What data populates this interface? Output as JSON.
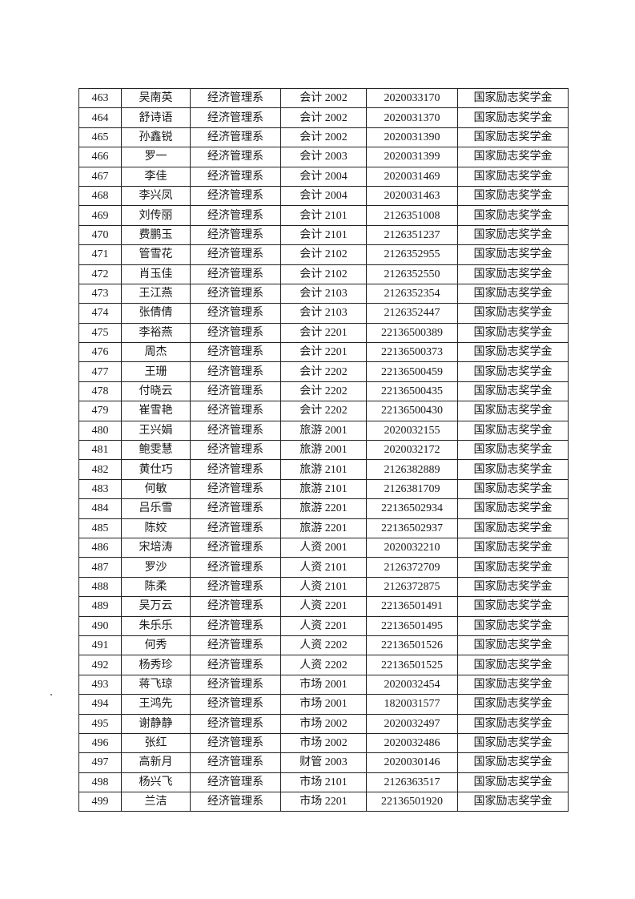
{
  "table": {
    "rows": [
      [
        "463",
        "吴南英",
        "经济管理系",
        "会计 2002",
        "2020033170",
        "国家励志奖学金"
      ],
      [
        "464",
        "舒诗语",
        "经济管理系",
        "会计 2002",
        "2020031370",
        "国家励志奖学金"
      ],
      [
        "465",
        "孙鑫锐",
        "经济管理系",
        "会计 2002",
        "2020031390",
        "国家励志奖学金"
      ],
      [
        "466",
        "罗一",
        "经济管理系",
        "会计 2003",
        "2020031399",
        "国家励志奖学金"
      ],
      [
        "467",
        "李佳",
        "经济管理系",
        "会计 2004",
        "2020031469",
        "国家励志奖学金"
      ],
      [
        "468",
        "李兴凤",
        "经济管理系",
        "会计 2004",
        "2020031463",
        "国家励志奖学金"
      ],
      [
        "469",
        "刘传丽",
        "经济管理系",
        "会计 2101",
        "2126351008",
        "国家励志奖学金"
      ],
      [
        "470",
        "费鹏玉",
        "经济管理系",
        "会计 2101",
        "2126351237",
        "国家励志奖学金"
      ],
      [
        "471",
        "管雪花",
        "经济管理系",
        "会计 2102",
        "2126352955",
        "国家励志奖学金"
      ],
      [
        "472",
        "肖玉佳",
        "经济管理系",
        "会计 2102",
        "2126352550",
        "国家励志奖学金"
      ],
      [
        "473",
        "王江燕",
        "经济管理系",
        "会计 2103",
        "2126352354",
        "国家励志奖学金"
      ],
      [
        "474",
        "张倩倩",
        "经济管理系",
        "会计 2103",
        "2126352447",
        "国家励志奖学金"
      ],
      [
        "475",
        "李裕燕",
        "经济管理系",
        "会计 2201",
        "22136500389",
        "国家励志奖学金"
      ],
      [
        "476",
        "周杰",
        "经济管理系",
        "会计 2201",
        "22136500373",
        "国家励志奖学金"
      ],
      [
        "477",
        "王珊",
        "经济管理系",
        "会计 2202",
        "22136500459",
        "国家励志奖学金"
      ],
      [
        "478",
        "付晓云",
        "经济管理系",
        "会计 2202",
        "22136500435",
        "国家励志奖学金"
      ],
      [
        "479",
        "崔雪艳",
        "经济管理系",
        "会计 2202",
        "22136500430",
        "国家励志奖学金"
      ],
      [
        "480",
        "王兴娟",
        "经济管理系",
        "旅游 2001",
        "2020032155",
        "国家励志奖学金"
      ],
      [
        "481",
        "鲍雯慧",
        "经济管理系",
        "旅游 2001",
        "2020032172",
        "国家励志奖学金"
      ],
      [
        "482",
        "黄仕巧",
        "经济管理系",
        "旅游 2101",
        "2126382889",
        "国家励志奖学金"
      ],
      [
        "483",
        "何敏",
        "经济管理系",
        "旅游 2101",
        "2126381709",
        "国家励志奖学金"
      ],
      [
        "484",
        "吕乐雪",
        "经济管理系",
        "旅游 2201",
        "22136502934",
        "国家励志奖学金"
      ],
      [
        "485",
        "陈姣",
        "经济管理系",
        "旅游 2201",
        "22136502937",
        "国家励志奖学金"
      ],
      [
        "486",
        "宋培涛",
        "经济管理系",
        "人资 2001",
        "2020032210",
        "国家励志奖学金"
      ],
      [
        "487",
        "罗沙",
        "经济管理系",
        "人资 2101",
        "2126372709",
        "国家励志奖学金"
      ],
      [
        "488",
        "陈柔",
        "经济管理系",
        "人资 2101",
        "2126372875",
        "国家励志奖学金"
      ],
      [
        "489",
        "吴万云",
        "经济管理系",
        "人资 2201",
        "22136501491",
        "国家励志奖学金"
      ],
      [
        "490",
        "朱乐乐",
        "经济管理系",
        "人资 2201",
        "22136501495",
        "国家励志奖学金"
      ],
      [
        "491",
        "何秀",
        "经济管理系",
        "人资 2202",
        "22136501526",
        "国家励志奖学金"
      ],
      [
        "492",
        "杨秀珍",
        "经济管理系",
        "人资 2202",
        "22136501525",
        "国家励志奖学金"
      ],
      [
        "493",
        "蒋飞琼",
        "经济管理系",
        "市场 2001",
        "2020032454",
        "国家励志奖学金"
      ],
      [
        "494",
        "王鸿先",
        "经济管理系",
        "市场 2001",
        "1820031577",
        "国家励志奖学金"
      ],
      [
        "495",
        "谢静静",
        "经济管理系",
        "市场 2002",
        "2020032497",
        "国家励志奖学金"
      ],
      [
        "496",
        "张红",
        "经济管理系",
        "市场 2002",
        "2020032486",
        "国家励志奖学金"
      ],
      [
        "497",
        "高新月",
        "经济管理系",
        "财管 2003",
        "2020030146",
        "国家励志奖学金"
      ],
      [
        "498",
        "杨兴飞",
        "经济管理系",
        "市场 2101",
        "2126363517",
        "国家励志奖学金"
      ],
      [
        "499",
        "兰洁",
        "经济管理系",
        "市场 2201",
        "22136501920",
        "国家励志奖学金"
      ]
    ]
  }
}
